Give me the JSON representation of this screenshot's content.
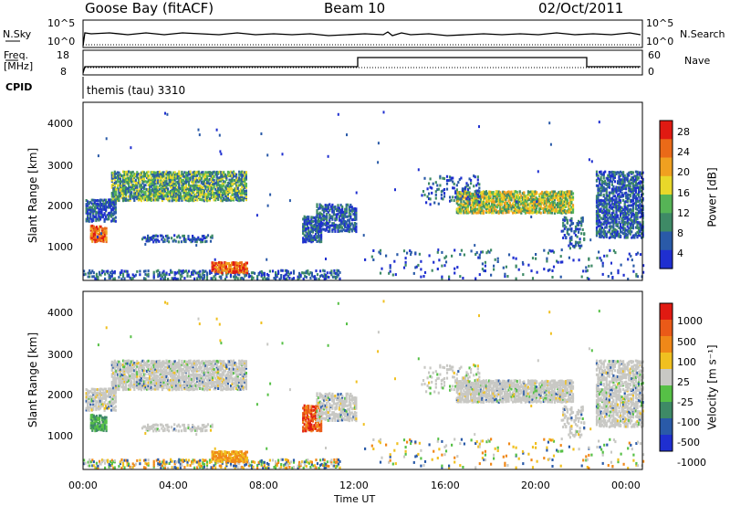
{
  "header": {
    "station": "Goose Bay (fitACF)",
    "beam": "Beam 10",
    "date": "02/Oct/2011"
  },
  "strip": {
    "nsky_label": "N.Sky",
    "nsky_ticks": [
      "10^5",
      "10^0"
    ],
    "nsearch_label": "N.Search",
    "nsearch_ticks": [
      "10^5",
      "10^0"
    ],
    "freq_label": "Freq.",
    "freq_unit": "[MHz]",
    "freq_ticks": [
      "18",
      "8"
    ],
    "nave_label": "Nave",
    "nave_ticks": [
      "60",
      "0"
    ],
    "cpid_label": "CPID",
    "cpid_value": "themis (tau) 3310"
  },
  "chart_data": [
    {
      "type": "heatmap",
      "name": "Power",
      "xlabel": "Time UT",
      "ylabel": "Slant Range [km]",
      "xlim": [
        0,
        24
      ],
      "ylim": [
        180,
        4500
      ],
      "ytick_labels": [
        "1000",
        "2000",
        "3000",
        "4000"
      ],
      "colorbar_label": "Power [dB]",
      "colorbar_ticks": [
        "4",
        "8",
        "12",
        "16",
        "20",
        "24",
        "28"
      ],
      "colors": [
        "#1f2fd0",
        "#2a5aa8",
        "#3e8a66",
        "#56b456",
        "#e8d82a",
        "#f0a020",
        "#ea6a18",
        "#e01a12"
      ]
    },
    {
      "type": "heatmap",
      "name": "Velocity",
      "xlabel": "Time UT",
      "ylabel": "Slant Range [km]",
      "xlim": [
        0,
        24
      ],
      "ylim": [
        180,
        4500
      ],
      "ytick_labels": [
        "1000",
        "2000",
        "3000",
        "4000"
      ],
      "xtick_labels": [
        "00:00",
        "04:00",
        "08:00",
        "12:00",
        "16:00",
        "20:00",
        "00:00"
      ],
      "colorbar_label": "Velocity [m s⁻¹]",
      "colorbar_ticks": [
        "1000",
        "500",
        "100",
        "25",
        "-25",
        "-100",
        "-500",
        "-1000"
      ],
      "colors": [
        "#1f2fd0",
        "#2a5aa8",
        "#3e8a66",
        "#56c046",
        "#c8c8c4",
        "#f0c020",
        "#f08818",
        "#ea5a18",
        "#e01a12"
      ]
    }
  ],
  "axis": {
    "time_label": "Time UT",
    "xticks": [
      "00:00",
      "04:00",
      "08:00",
      "12:00",
      "16:00",
      "20:00",
      "00:00"
    ]
  }
}
